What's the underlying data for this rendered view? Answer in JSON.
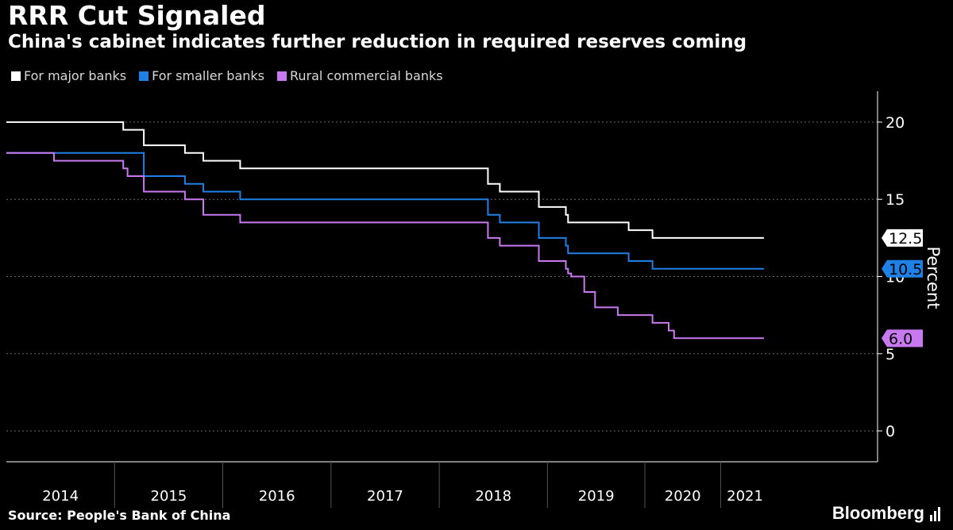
{
  "header": {
    "title": "RRR Cut Signaled",
    "subtitle": "China's cabinet indicates further reduction in required reserves coming"
  },
  "legend": [
    {
      "label": "For major banks",
      "color": "#ffffff"
    },
    {
      "label": "For smaller banks",
      "color": "#1f80e6"
    },
    {
      "label": "Rural commercial banks",
      "color": "#c879f0"
    }
  ],
  "footer": {
    "source": "Source: People's Bank of China",
    "brand": "Bloomberg"
  },
  "chart_data": {
    "type": "line",
    "step": true,
    "ylabel": "Percent",
    "ylim": [
      -2,
      22
    ],
    "yticks": [
      0,
      5,
      10,
      15,
      20
    ],
    "xlim": [
      2013.5,
      2021.55
    ],
    "year_labels": [
      {
        "label": "2014",
        "start": 2013.5,
        "end": 2014.5
      },
      {
        "label": "2015",
        "start": 2014.5,
        "end": 2015.5
      },
      {
        "label": "2016",
        "start": 2015.5,
        "end": 2016.5
      },
      {
        "label": "2017",
        "start": 2016.5,
        "end": 2017.5
      },
      {
        "label": "2018",
        "start": 2017.5,
        "end": 2018.5
      },
      {
        "label": "2019",
        "start": 2018.5,
        "end": 2019.4
      },
      {
        "label": "2020",
        "start": 2019.4,
        "end": 2020.1
      },
      {
        "label": "2021",
        "start": 2020.1,
        "end": 2020.55
      }
    ],
    "series": [
      {
        "name": "For major banks",
        "color": "#ffffff",
        "end_label": "12.5",
        "x": [
          2013.5,
          2014.58,
          2014.77,
          2015.15,
          2015.32,
          2015.66,
          2017.95,
          2018.06,
          2018.42,
          2018.67,
          2018.69,
          2019.25,
          2019.47,
          2020.5
        ],
        "y": [
          20,
          19.5,
          18.5,
          18,
          17.5,
          17,
          16,
          15.5,
          14.5,
          14,
          13.5,
          13,
          12.5,
          12.5
        ]
      },
      {
        "name": "For smaller banks",
        "color": "#1f80e6",
        "end_label": "10.5",
        "x": [
          2013.5,
          2014.77,
          2015.15,
          2015.32,
          2015.66,
          2017.95,
          2018.06,
          2018.42,
          2018.67,
          2018.69,
          2019.25,
          2019.47,
          2020.5
        ],
        "y": [
          18,
          16.5,
          16,
          15.5,
          15,
          14,
          13.5,
          12.5,
          12,
          11.5,
          11,
          10.5,
          10.5
        ]
      },
      {
        "name": "Rural commercial banks",
        "color": "#c879f0",
        "end_label": "6.0",
        "x": [
          2013.5,
          2013.94,
          2014.58,
          2014.62,
          2014.77,
          2015.15,
          2015.32,
          2015.66,
          2017.95,
          2018.06,
          2018.42,
          2018.67,
          2018.69,
          2018.72,
          2018.84,
          2018.94,
          2019.15,
          2019.25,
          2019.47,
          2019.62,
          2019.67,
          2020.5
        ],
        "y": [
          18,
          17.5,
          17,
          16.5,
          15.5,
          15,
          14,
          13.5,
          12.5,
          12,
          11,
          10.5,
          10.2,
          10,
          9,
          8,
          7.5,
          7.5,
          7,
          6.5,
          6,
          6
        ]
      }
    ]
  }
}
